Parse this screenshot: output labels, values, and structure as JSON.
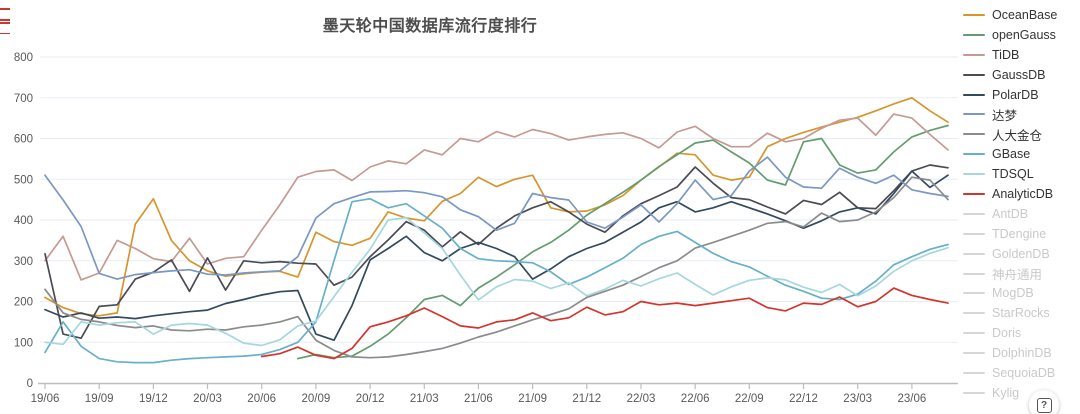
{
  "page": {
    "background": "#ffffff"
  },
  "help_button": {
    "icon": "boxed-question-icon",
    "label": "?"
  },
  "decorations": {
    "left_edge_artifact": "red-partial-text-cut-by-screen-edge"
  },
  "legend": {
    "disabled_swatch_color": "#d6d6d6",
    "items": [
      {
        "label": "OceanBase",
        "color": "#d6962c",
        "active": true
      },
      {
        "label": "openGauss",
        "color": "#639c6f",
        "active": true
      },
      {
        "label": "TiDB",
        "color": "#c59a92",
        "active": true
      },
      {
        "label": "GaussDB",
        "color": "#4b4b55",
        "active": true
      },
      {
        "label": "PolarDB",
        "color": "#33495e",
        "active": true
      },
      {
        "label": "达梦",
        "color": "#7b97c3",
        "active": true
      },
      {
        "label": "人大金仓",
        "color": "#8b8b8b",
        "active": true
      },
      {
        "label": "GBase",
        "color": "#66b0c8",
        "active": true
      },
      {
        "label": "TDSQL",
        "color": "#a5d7de",
        "active": true
      },
      {
        "label": "AnalyticDB",
        "color": "#d3342c",
        "active": true
      },
      {
        "label": "AntDB",
        "color": "#d6d6d6",
        "active": false
      },
      {
        "label": "TDengine",
        "color": "#d6d6d6",
        "active": false
      },
      {
        "label": "GoldenDB",
        "color": "#d6d6d6",
        "active": false
      },
      {
        "label": "神舟通用",
        "color": "#d6d6d6",
        "active": false
      },
      {
        "label": "MogDB",
        "color": "#d6d6d6",
        "active": false
      },
      {
        "label": "StarRocks",
        "color": "#d6d6d6",
        "active": false
      },
      {
        "label": "Doris",
        "color": "#d6d6d6",
        "active": false
      },
      {
        "label": "DolphinDB",
        "color": "#d6d6d6",
        "active": false
      },
      {
        "label": "SequoiaDB",
        "color": "#d6d6d6",
        "active": false
      },
      {
        "label": "Kylig",
        "color": "#d6d6d6",
        "active": false
      }
    ]
  },
  "chart_data": {
    "type": "line",
    "title": "墨天轮中国数据库流行度排行",
    "xlabel": "",
    "ylabel": "",
    "ylim": [
      0,
      800
    ],
    "yticks": [
      0,
      100,
      200,
      300,
      400,
      500,
      600,
      700,
      800
    ],
    "grid": true,
    "legend_position": "right",
    "x_tick_step": 3,
    "x_tick_labels": [
      "19/06",
      "19/09",
      "19/12",
      "20/03",
      "20/06",
      "20/09",
      "20/12",
      "21/03",
      "21/06",
      "21/09",
      "21/12",
      "22/03",
      "22/06",
      "22/09",
      "22/12",
      "23/03",
      "23/06"
    ],
    "months": [
      "19/06",
      "19/07",
      "19/08",
      "19/09",
      "19/10",
      "19/11",
      "19/12",
      "20/01",
      "20/02",
      "20/03",
      "20/04",
      "20/05",
      "20/06",
      "20/07",
      "20/08",
      "20/09",
      "20/10",
      "20/11",
      "20/12",
      "21/01",
      "21/02",
      "21/03",
      "21/04",
      "21/05",
      "21/06",
      "21/07",
      "21/08",
      "21/09",
      "21/10",
      "21/11",
      "21/12",
      "22/01",
      "22/02",
      "22/03",
      "22/04",
      "22/05",
      "22/06",
      "22/07",
      "22/08",
      "22/09",
      "22/10",
      "22/11",
      "22/12",
      "23/01",
      "23/02",
      "23/03",
      "23/04",
      "23/05",
      "23/06",
      "23/07",
      "23/08"
    ],
    "series": [
      {
        "name": "OceanBase",
        "color": "#d6962c",
        "values": [
          210,
          185,
          170,
          165,
          172,
          390,
          452,
          350,
          300,
          275,
          262,
          268,
          272,
          274,
          260,
          370,
          347,
          338,
          355,
          420,
          405,
          398,
          446,
          465,
          505,
          482,
          500,
          510,
          430,
          420,
          422,
          437,
          460,
          498,
          530,
          564,
          560,
          510,
          498,
          505,
          580,
          600,
          615,
          628,
          640,
          652,
          668,
          685,
          700,
          668,
          640
        ]
      },
      {
        "name": "openGauss",
        "color": "#639c6f",
        "values": [
          null,
          null,
          null,
          null,
          null,
          null,
          null,
          null,
          null,
          null,
          null,
          null,
          null,
          null,
          60,
          70,
          62,
          66,
          90,
          120,
          160,
          205,
          215,
          190,
          233,
          260,
          290,
          322,
          345,
          375,
          412,
          440,
          468,
          498,
          531,
          560,
          589,
          596,
          567,
          540,
          498,
          486,
          592,
          600,
          535,
          515,
          523,
          567,
          604,
          620,
          632
        ]
      },
      {
        "name": "TiDB",
        "color": "#c59a92",
        "values": [
          300,
          360,
          253,
          270,
          350,
          330,
          305,
          298,
          355,
          292,
          306,
          310,
          375,
          437,
          505,
          519,
          523,
          497,
          530,
          545,
          538,
          572,
          560,
          600,
          592,
          617,
          604,
          622,
          612,
          596,
          604,
          610,
          614,
          600,
          577,
          616,
          630,
          600,
          580,
          580,
          613,
          592,
          600,
          625,
          645,
          650,
          608,
          660,
          650,
          610,
          572
        ]
      },
      {
        "name": "GaussDB",
        "color": "#4b4b55",
        "values": [
          317,
          120,
          110,
          188,
          192,
          255,
          272,
          302,
          225,
          307,
          228,
          300,
          295,
          298,
          294,
          292,
          240,
          260,
          310,
          351,
          396,
          375,
          334,
          371,
          340,
          380,
          410,
          430,
          445,
          420,
          390,
          370,
          410,
          440,
          460,
          481,
          530,
          490,
          455,
          450,
          432,
          415,
          448,
          438,
          468,
          430,
          428,
          472,
          520,
          535,
          528
        ]
      },
      {
        "name": "PolarDB",
        "color": "#33495e",
        "values": [
          180,
          162,
          172,
          159,
          162,
          158,
          165,
          170,
          175,
          179,
          195,
          205,
          216,
          224,
          227,
          120,
          105,
          190,
          302,
          330,
          360,
          320,
          300,
          330,
          345,
          330,
          310,
          255,
          280,
          310,
          330,
          345,
          370,
          395,
          430,
          445,
          420,
          430,
          445,
          430,
          415,
          398,
          380,
          398,
          420,
          430,
          415,
          465,
          520,
          480,
          510
        ]
      },
      {
        "name": "达梦",
        "color": "#7b97c3",
        "values": [
          510,
          449,
          384,
          269,
          255,
          266,
          271,
          275,
          278,
          267,
          265,
          270,
          273,
          275,
          310,
          405,
          440,
          455,
          469,
          470,
          472,
          467,
          457,
          425,
          408,
          375,
          392,
          465,
          455,
          449,
          395,
          380,
          407,
          437,
          395,
          440,
          498,
          450,
          460,
          520,
          554,
          505,
          481,
          478,
          527,
          505,
          490,
          510,
          474,
          465,
          458
        ]
      },
      {
        "name": "人大金仓",
        "color": "#8b8b8b",
        "values": [
          230,
          172,
          156,
          150,
          141,
          136,
          140,
          130,
          128,
          132,
          130,
          138,
          142,
          150,
          163,
          105,
          80,
          64,
          62,
          64,
          70,
          77,
          85,
          98,
          113,
          125,
          140,
          155,
          168,
          182,
          210,
          225,
          240,
          261,
          283,
          300,
          331,
          345,
          360,
          375,
          392,
          396,
          383,
          417,
          396,
          400,
          420,
          455,
          505,
          498,
          450
        ]
      },
      {
        "name": "GBase",
        "color": "#66b0c8",
        "values": [
          75,
          150,
          90,
          60,
          52,
          50,
          50,
          56,
          60,
          62,
          64,
          66,
          70,
          82,
          100,
          150,
          300,
          445,
          452,
          430,
          440,
          410,
          380,
          330,
          305,
          300,
          298,
          295,
          273,
          242,
          260,
          283,
          306,
          340,
          360,
          372,
          345,
          318,
          298,
          285,
          262,
          240,
          225,
          208,
          205,
          218,
          250,
          290,
          310,
          328,
          340
        ]
      },
      {
        "name": "TDSQL",
        "color": "#a5d7de",
        "values": [
          100,
          95,
          150,
          142,
          148,
          150,
          120,
          142,
          146,
          142,
          122,
          98,
          92,
          106,
          140,
          152,
          212,
          272,
          328,
          400,
          406,
          368,
          330,
          265,
          204,
          236,
          254,
          250,
          232,
          246,
          214,
          230,
          252,
          238,
          256,
          270,
          242,
          216,
          236,
          252,
          258,
          253,
          235,
          222,
          242,
          214,
          238,
          274,
          300,
          318,
          332
        ]
      },
      {
        "name": "AnalyticDB",
        "color": "#d3342c",
        "values": [
          null,
          null,
          null,
          null,
          null,
          null,
          null,
          null,
          null,
          null,
          null,
          null,
          65,
          72,
          88,
          68,
          60,
          85,
          138,
          150,
          165,
          184,
          163,
          140,
          135,
          150,
          155,
          172,
          153,
          160,
          186,
          167,
          175,
          200,
          192,
          196,
          190,
          196,
          202,
          208,
          185,
          177,
          196,
          193,
          211,
          187,
          200,
          233,
          215,
          205,
          196
        ]
      }
    ],
    "style": {
      "grid_color": "#e6edf5",
      "axis_color": "#bdbdbd",
      "tick_label_color": "#595959",
      "line_width": 1.7
    }
  }
}
